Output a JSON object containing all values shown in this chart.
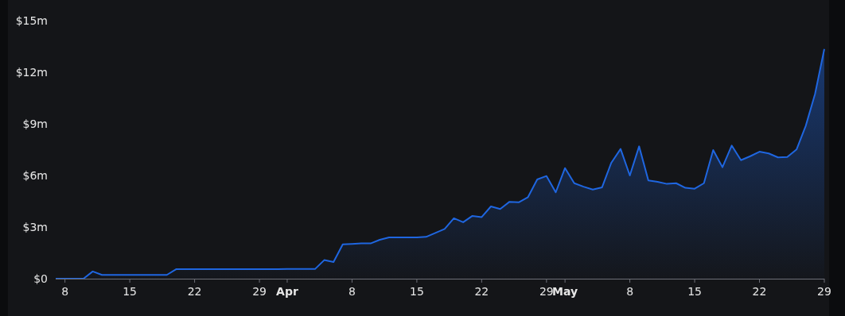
{
  "chart_data": {
    "type": "area",
    "x": [
      "--03-07",
      "--03-08",
      "--03-09",
      "--03-10",
      "--03-11",
      "--03-12",
      "--03-13",
      "--03-14",
      "--03-15",
      "--03-16",
      "--03-17",
      "--03-18",
      "--03-19",
      "--03-20",
      "--03-21",
      "--03-22",
      "--03-23",
      "--03-24",
      "--03-25",
      "--03-26",
      "--03-27",
      "--03-28",
      "--03-29",
      "--03-30",
      "--03-31",
      "--04-01",
      "--04-02",
      "--04-03",
      "--04-04",
      "--04-05",
      "--04-06",
      "--04-07",
      "--04-08",
      "--04-09",
      "--04-10",
      "--04-11",
      "--04-12",
      "--04-13",
      "--04-14",
      "--04-15",
      "--04-16",
      "--04-17",
      "--04-18",
      "--04-19",
      "--04-20",
      "--04-21",
      "--04-22",
      "--04-23",
      "--04-24",
      "--04-25",
      "--04-26",
      "--04-27",
      "--04-28",
      "--04-29",
      "--04-30",
      "--05-01",
      "--05-02",
      "--05-03",
      "--05-04",
      "--05-05",
      "--05-06",
      "--05-07",
      "--05-08",
      "--05-09",
      "--05-10",
      "--05-11",
      "--05-12",
      "--05-13",
      "--05-14",
      "--05-15",
      "--05-16",
      "--05-17",
      "--05-18",
      "--05-19",
      "--05-20",
      "--05-21",
      "--05-22",
      "--05-23",
      "--05-24",
      "--05-25",
      "--05-26",
      "--05-27",
      "--05-28",
      "--05-29"
    ],
    "series": [
      {
        "color": "#1f66e0",
        "values": [
          0,
          0,
          0,
          0,
          0.42,
          0.22,
          0.22,
          0.22,
          0.22,
          0.22,
          0.22,
          0.22,
          0.22,
          0.55,
          0.55,
          0.55,
          0.55,
          0.55,
          0.55,
          0.55,
          0.55,
          0.55,
          0.55,
          0.55,
          0.55,
          0.56,
          0.56,
          0.56,
          0.56,
          1.08,
          0.97,
          2.0,
          2.02,
          2.05,
          2.05,
          2.26,
          2.4,
          2.4,
          2.4,
          2.4,
          2.43,
          2.66,
          2.89,
          3.51,
          3.28,
          3.65,
          3.58,
          4.2,
          4.05,
          4.47,
          4.44,
          4.74,
          5.77,
          5.97,
          5.02,
          6.43,
          5.55,
          5.35,
          5.18,
          5.31,
          6.74,
          7.54,
          6.0,
          7.69,
          5.71,
          5.63,
          5.51,
          5.55,
          5.28,
          5.23,
          5.55,
          7.48,
          6.48,
          7.74,
          6.89,
          7.12,
          7.38,
          7.28,
          7.05,
          7.07,
          7.51,
          8.89,
          10.74,
          13.35
        ]
      }
    ],
    "xlim": [
      "--03-07",
      "--05-29"
    ],
    "xticks": [
      {
        "value": "--03-08",
        "label": "8"
      },
      {
        "value": "--03-15",
        "label": "15"
      },
      {
        "value": "--03-22",
        "label": "22"
      },
      {
        "value": "--03-29",
        "label": "29"
      },
      {
        "value": "--04-01",
        "label": "Apr"
      },
      {
        "value": "--04-08",
        "label": "8"
      },
      {
        "value": "--04-15",
        "label": "15"
      },
      {
        "value": "--04-22",
        "label": "22"
      },
      {
        "value": "--04-29",
        "label": "29"
      },
      {
        "value": "--05-01",
        "label": "May"
      },
      {
        "value": "--05-08",
        "label": "8"
      },
      {
        "value": "--05-15",
        "label": "15"
      },
      {
        "value": "--05-22",
        "label": "22"
      },
      {
        "value": "--05-29",
        "label": "29"
      }
    ],
    "ylim": [
      0,
      15
    ],
    "yticks": [
      {
        "value": 0,
        "label": "$0"
      },
      {
        "value": 3,
        "label": "$3m"
      },
      {
        "value": 6,
        "label": "$6m"
      },
      {
        "value": 9,
        "label": "$9m"
      },
      {
        "value": 12,
        "label": "$12m"
      },
      {
        "value": 15,
        "label": "$15m"
      }
    ],
    "grid": false
  }
}
